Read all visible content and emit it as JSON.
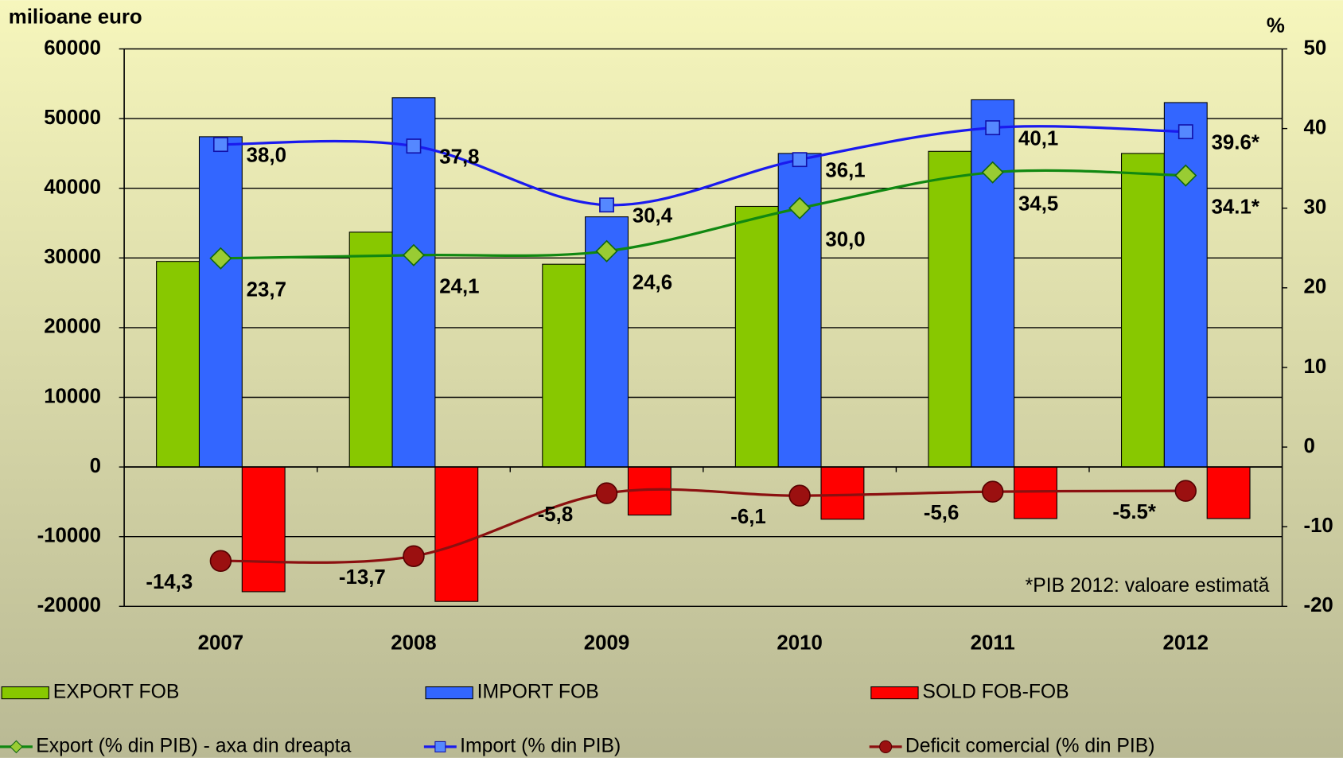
{
  "chart_data": {
    "type": "bar_line",
    "y_label": "milioane euro",
    "y2_label": "%",
    "note": "*PIB 2012: valoare estimată",
    "categories": [
      "2007",
      "2008",
      "2009",
      "2010",
      "2011",
      "2012"
    ],
    "ylim": [
      -20000,
      60000
    ],
    "yticks": [
      -20000,
      -10000,
      0,
      10000,
      20000,
      30000,
      40000,
      50000,
      60000
    ],
    "y2lim": [
      -20,
      50
    ],
    "y2ticks": [
      -20,
      -10,
      0,
      10,
      20,
      30,
      40,
      50
    ],
    "grid": true,
    "series": [
      {
        "name": "EXPORT FOB",
        "kind": "bar",
        "color": "#88c800",
        "values": [
          29500,
          33700,
          29100,
          37400,
          45300,
          45000
        ]
      },
      {
        "name": "IMPORT FOB",
        "kind": "bar",
        "color": "#3366ff",
        "values": [
          47400,
          53000,
          35900,
          45000,
          52700,
          52300
        ]
      },
      {
        "name": "SOLD FOB-FOB",
        "kind": "bar",
        "color": "#ff0000",
        "values": [
          -17900,
          -19300,
          -6900,
          -7500,
          -7400,
          -7400
        ]
      },
      {
        "name": "Export (% din PIB) - axa din dreapta",
        "kind": "line",
        "axis": "y2",
        "color": "#118811",
        "marker": "diamond",
        "values": [
          23.7,
          24.1,
          24.6,
          30.0,
          34.5,
          34.1
        ],
        "value_labels": [
          "23,7",
          "24,1",
          "24,6",
          "30,0",
          "34,5",
          "34.1*"
        ]
      },
      {
        "name": "Import (% din PIB)",
        "kind": "line",
        "axis": "y2",
        "color": "#1a1aee",
        "marker": "square",
        "values": [
          38.0,
          37.8,
          30.4,
          36.1,
          40.1,
          39.6
        ],
        "value_labels": [
          "38,0",
          "37,8",
          "30,4",
          "36,1",
          "40,1",
          "39.6*"
        ]
      },
      {
        "name": "Deficit comercial (% din PIB)",
        "kind": "line",
        "axis": "y2",
        "color": "#8b1010",
        "marker": "circle",
        "values": [
          -14.3,
          -13.7,
          -5.8,
          -6.1,
          -5.6,
          -5.5
        ],
        "value_labels": [
          "-14,3",
          "-13,7",
          "-5,8",
          "-6,1",
          "-5,6",
          "-5.5*"
        ]
      }
    ]
  }
}
